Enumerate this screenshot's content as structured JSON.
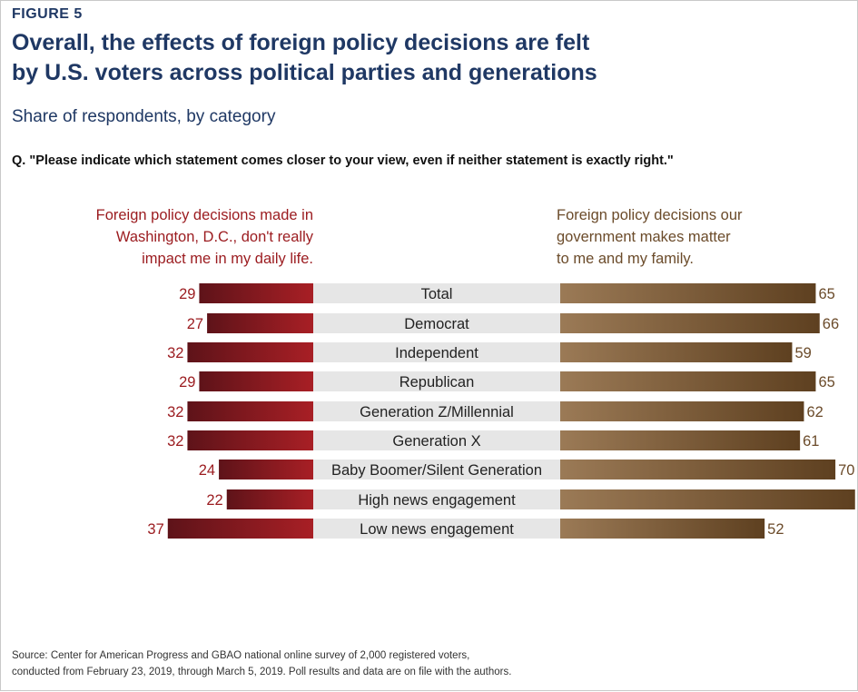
{
  "figure_label": "FIGURE 5",
  "title_line1": "Overall, the effects of foreign policy decisions are felt",
  "title_line2": "by U.S. voters across political parties and generations",
  "subtitle": "Share of respondents, by category",
  "question": "Q. \"Please indicate which statement comes closer to your view, even if neither statement is exactly right.\"",
  "left_header": [
    "Foreign policy decisions made in",
    "Washington, D.C., don't really",
    "impact me in my daily life."
  ],
  "right_header": [
    "Foreign policy decisions our",
    "government makes matter",
    "to me and my family."
  ],
  "source_line1": "Source: Center for American Progress and GBAO national online survey of 2,000 registered voters,",
  "source_line2": "conducted from February 23, 2019, through March 5, 2019. Poll results and data are on file with the authors.",
  "colors": {
    "left_dark": "#5e1319",
    "left_light": "#a81f25",
    "right_light": "#9b7a56",
    "right_dark": "#5e4020",
    "left_text": "#9b1b1f",
    "right_text": "#6b4b2a",
    "label_band": "#e6e6e6"
  },
  "chart_data": {
    "type": "bar",
    "layout": "diverging",
    "categories": [
      "Total",
      "Democrat",
      "Independent",
      "Republican",
      "Generation Z/Millennial",
      "Generation X",
      "Baby Boomer/Silent Generation",
      "High news engagement",
      "Low news engagement"
    ],
    "groups": [
      [
        0
      ],
      [
        1,
        2,
        3
      ],
      [
        4,
        5,
        6
      ],
      [
        7,
        8
      ]
    ],
    "series": [
      {
        "values": [
          29,
          27,
          32,
          29,
          32,
          32,
          24,
          22,
          37
        ]
      },
      {
        "values": [
          65,
          66,
          59,
          65,
          62,
          61,
          70,
          75,
          52
        ]
      }
    ]
  }
}
